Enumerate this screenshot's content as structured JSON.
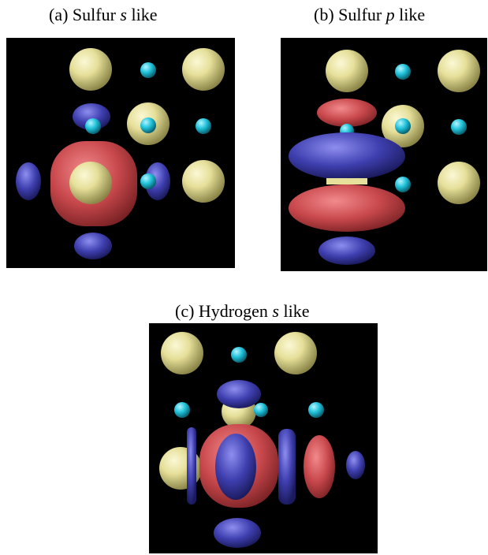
{
  "figure": {
    "panels": [
      {
        "caption": {
          "prefix": "(a) Sulfur ",
          "orbital": "s",
          "suffix": " like"
        }
      },
      {
        "caption": {
          "prefix": "(b) Sulfur ",
          "orbital": "p",
          "suffix": " like"
        }
      },
      {
        "caption": {
          "prefix": "(c) Hydrogen ",
          "orbital": "s",
          "suffix": " like"
        }
      }
    ],
    "colors": {
      "background": "#000000",
      "sulfur_atom": "#e6e09a",
      "hydrogen_atom": "#22c4dc",
      "positive_lobe": "#c8484c",
      "negative_lobe": "#3f3fb0"
    }
  }
}
